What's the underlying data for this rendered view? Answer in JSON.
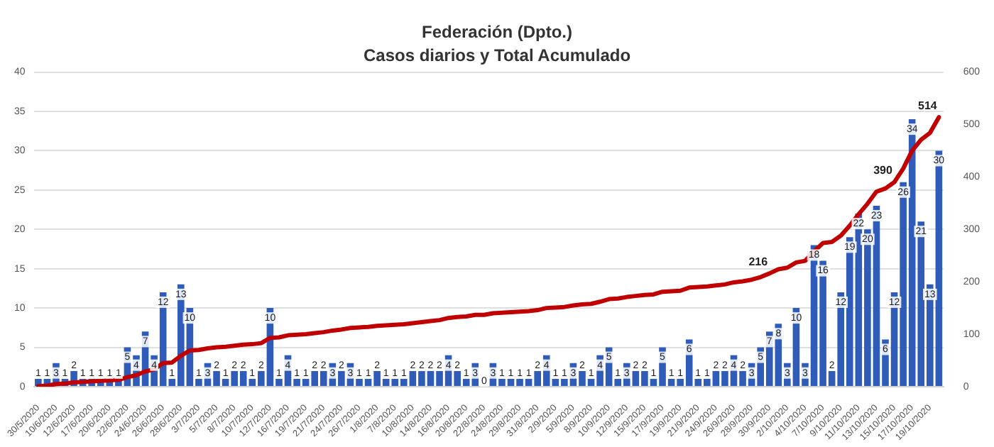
{
  "chart_data": {
    "type": "bar",
    "title": "Federación (Dpto.)",
    "subtitle": "Casos diarios y Total Acumulado",
    "categories": [
      "30/5/2020",
      null,
      "10/6/2020",
      null,
      "12/6/2020",
      null,
      "17/6/2020",
      null,
      "20/6/2020",
      null,
      "22/6/2020",
      null,
      "24/6/2020",
      null,
      "26/6/2020",
      null,
      "28/6/2020",
      null,
      "3/7/2020",
      null,
      "5/7/2020",
      null,
      "8/7/2020",
      null,
      "10/7/2020",
      null,
      "12/7/2020",
      null,
      "16/7/2020",
      null,
      "19/7/2020",
      null,
      "21/7/2020",
      null,
      "24/7/2020",
      null,
      "26/7/2020",
      null,
      "1/8/2020",
      null,
      "7/8/2020",
      null,
      "10/8/2020",
      null,
      "14/8/2020",
      null,
      "16/8/2020",
      null,
      "20/8/2020",
      null,
      "22/8/2020",
      null,
      "24/8/2020",
      null,
      "29/8/2020",
      null,
      "31/8/2020",
      null,
      "2/9/2020",
      null,
      "5/9/2020",
      null,
      "8/9/2020",
      null,
      "10/9/2020",
      null,
      "12/9/2020",
      null,
      "15/9/2020",
      null,
      "17/9/2020",
      null,
      "19/9/2020",
      null,
      "21/9/2020",
      null,
      "24/9/2020",
      null,
      "26/9/2020",
      null,
      "28/9/2020",
      null,
      "30/9/2020",
      null,
      "2/10/2020",
      null,
      "4/10/2020",
      null,
      "7/10/2020",
      null,
      "9/10/2020",
      null,
      "11/10/2020",
      null,
      "13/10/2020",
      null,
      "15/10/2020",
      null,
      "17/10/2020",
      null,
      "19/10/2020",
      null
    ],
    "series": [
      {
        "color": "#2f5cb8",
        "values": [
          1,
          1,
          3,
          1,
          2,
          1,
          1,
          1,
          1,
          1,
          5,
          4,
          7,
          4,
          12,
          1,
          13,
          10,
          1,
          3,
          2,
          1,
          2,
          2,
          1,
          2,
          10,
          1,
          4,
          1,
          1,
          2,
          2,
          3,
          2,
          3,
          1,
          1,
          2,
          1,
          1,
          1,
          2,
          2,
          2,
          2,
          4,
          2,
          1,
          3,
          0,
          3,
          1,
          1,
          1,
          1,
          2,
          4,
          1,
          1,
          3,
          2,
          1,
          4,
          5,
          1,
          3,
          2,
          2,
          1,
          5,
          1,
          1,
          6,
          1,
          1,
          2,
          2,
          4,
          2,
          3,
          5,
          7,
          8,
          3,
          10,
          3,
          18,
          16,
          2,
          12,
          19,
          22,
          20,
          23,
          6,
          12,
          26,
          34,
          21,
          13,
          30
        ],
        "value_labels": [
          "1",
          "1",
          "3",
          "1",
          "2",
          "1",
          "1",
          "1",
          "1",
          "1",
          "5",
          "4",
          "7",
          "4",
          "12",
          "1",
          "13",
          "10",
          "1",
          "3",
          "2",
          "1",
          "2",
          "2",
          "1",
          "2",
          "10",
          "1",
          "4",
          "1",
          "1",
          "2",
          "2",
          "3",
          "2",
          "3",
          "1",
          "1",
          "2",
          "1",
          "1",
          "1",
          "2",
          "2",
          "2",
          "2",
          "4",
          "2",
          "1",
          "3",
          "0",
          "3",
          "1",
          "1",
          "1",
          "1",
          "2",
          "4",
          "1",
          "1",
          "3",
          "2",
          "1",
          "4",
          "5",
          "1",
          "3",
          "2",
          "2",
          "1",
          "5",
          "1",
          "1",
          "6",
          "1",
          "1",
          "2",
          "2",
          "4",
          "2",
          "3",
          "5",
          "7",
          "8",
          "3",
          "10",
          "3",
          "18",
          "16",
          "2",
          "12",
          "19",
          "22",
          "20",
          "23",
          "6",
          "12",
          "26",
          "34",
          "21",
          "13",
          "30"
        ]
      },
      {
        "type": "line",
        "axis": "y2",
        "color": "#c00000",
        "values": [
          1,
          2,
          5,
          6,
          8,
          9,
          10,
          11,
          12,
          13,
          18,
          22,
          29,
          33,
          45,
          46,
          59,
          69,
          70,
          73,
          75,
          76,
          78,
          80,
          81,
          83,
          93,
          94,
          98,
          99,
          100,
          102,
          104,
          107,
          109,
          112,
          113,
          114,
          116,
          117,
          118,
          119,
          121,
          123,
          125,
          127,
          131,
          133,
          134,
          137,
          137,
          140,
          141,
          142,
          143,
          144,
          146,
          150,
          151,
          152,
          155,
          157,
          158,
          162,
          167,
          168,
          171,
          173,
          175,
          176,
          181,
          182,
          183,
          189,
          190,
          191,
          193,
          195,
          199,
          201,
          204,
          209,
          216,
          224,
          227,
          237,
          240,
          258,
          274,
          276,
          288,
          307,
          329,
          349,
          372,
          378,
          390,
          416,
          450,
          471,
          484,
          514
        ],
        "value_labels": [
          null,
          null,
          null,
          null,
          null,
          null,
          null,
          null,
          null,
          null,
          null,
          null,
          null,
          null,
          null,
          null,
          null,
          null,
          null,
          null,
          null,
          null,
          null,
          null,
          null,
          null,
          null,
          null,
          null,
          null,
          null,
          null,
          null,
          null,
          null,
          null,
          null,
          null,
          null,
          null,
          null,
          null,
          null,
          null,
          null,
          null,
          null,
          null,
          null,
          null,
          null,
          null,
          null,
          null,
          null,
          null,
          null,
          null,
          null,
          null,
          null,
          null,
          null,
          null,
          null,
          null,
          null,
          null,
          null,
          null,
          null,
          null,
          null,
          null,
          null,
          null,
          null,
          null,
          null,
          null,
          null,
          null,
          "216",
          null,
          null,
          null,
          null,
          null,
          null,
          null,
          null,
          null,
          null,
          null,
          null,
          null,
          "390",
          null,
          null,
          null,
          null,
          "514"
        ]
      }
    ],
    "ylim": [
      0,
      40
    ],
    "yticks": [
      0,
      5,
      10,
      15,
      20,
      25,
      30,
      35,
      40
    ],
    "y2lim": [
      0,
      600
    ],
    "y2ticks": [
      0,
      100,
      200,
      300,
      400,
      500,
      600
    ],
    "grid": "y",
    "legend": false,
    "marker": "none",
    "line_style": "solid"
  }
}
